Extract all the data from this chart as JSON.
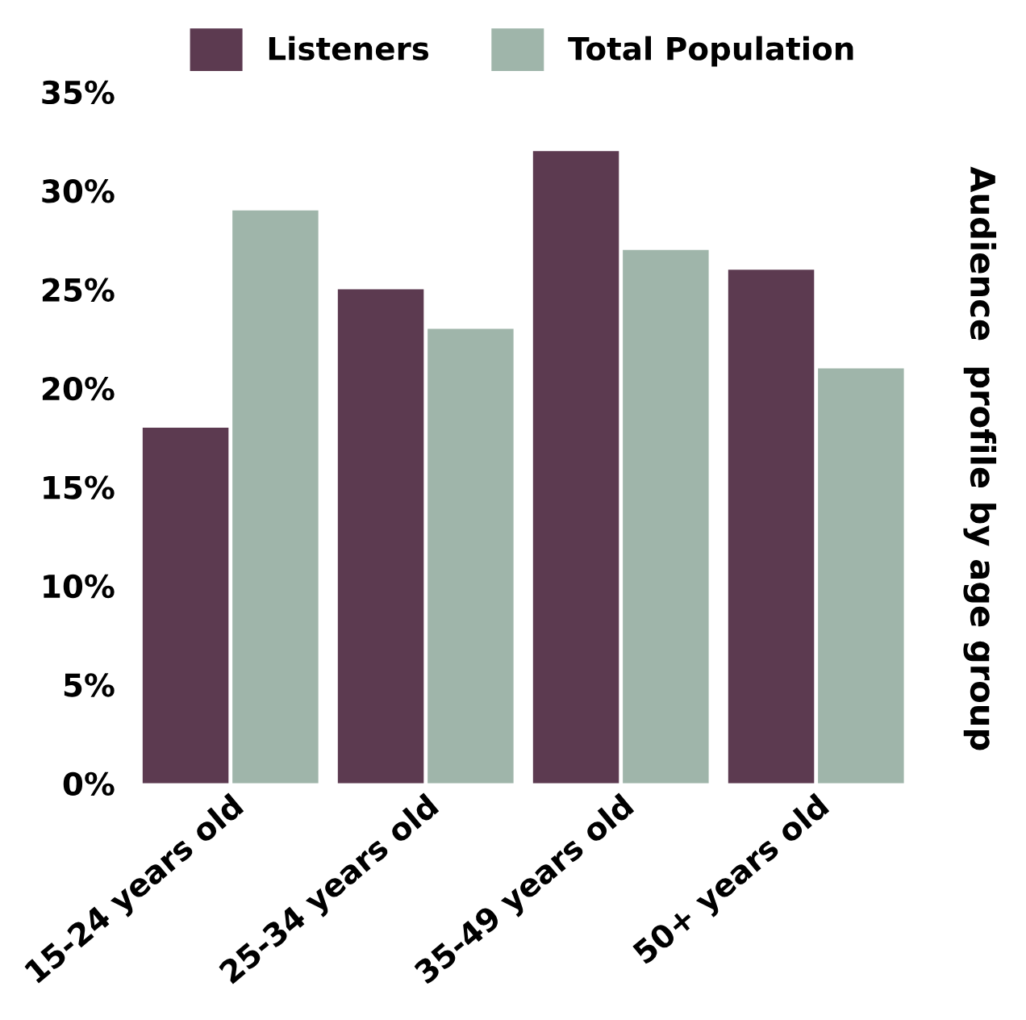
{
  "chart_data": {
    "type": "bar",
    "title": "Audience  profile by age group",
    "categories": [
      "15-24 years old",
      "25-34 years old",
      "35-49 years old",
      "50+ years old"
    ],
    "series": [
      {
        "name": "Listeners",
        "color": "#5c3a50",
        "values": [
          18,
          25,
          32,
          26
        ]
      },
      {
        "name": "Total Population",
        "color": "#9fb5aa",
        "values": [
          29,
          23,
          27,
          21
        ]
      }
    ],
    "ylim": [
      0,
      35
    ],
    "yticks": [
      {
        "value": 0,
        "label": "0%"
      },
      {
        "value": 5,
        "label": "5%"
      },
      {
        "value": 10,
        "label": "10%"
      },
      {
        "value": 15,
        "label": "15%"
      },
      {
        "value": 20,
        "label": "20%"
      },
      {
        "value": 25,
        "label": "25%"
      },
      {
        "value": 30,
        "label": "30%"
      },
      {
        "value": 35,
        "label": "35%"
      }
    ],
    "grid": false,
    "legend": "top"
  }
}
